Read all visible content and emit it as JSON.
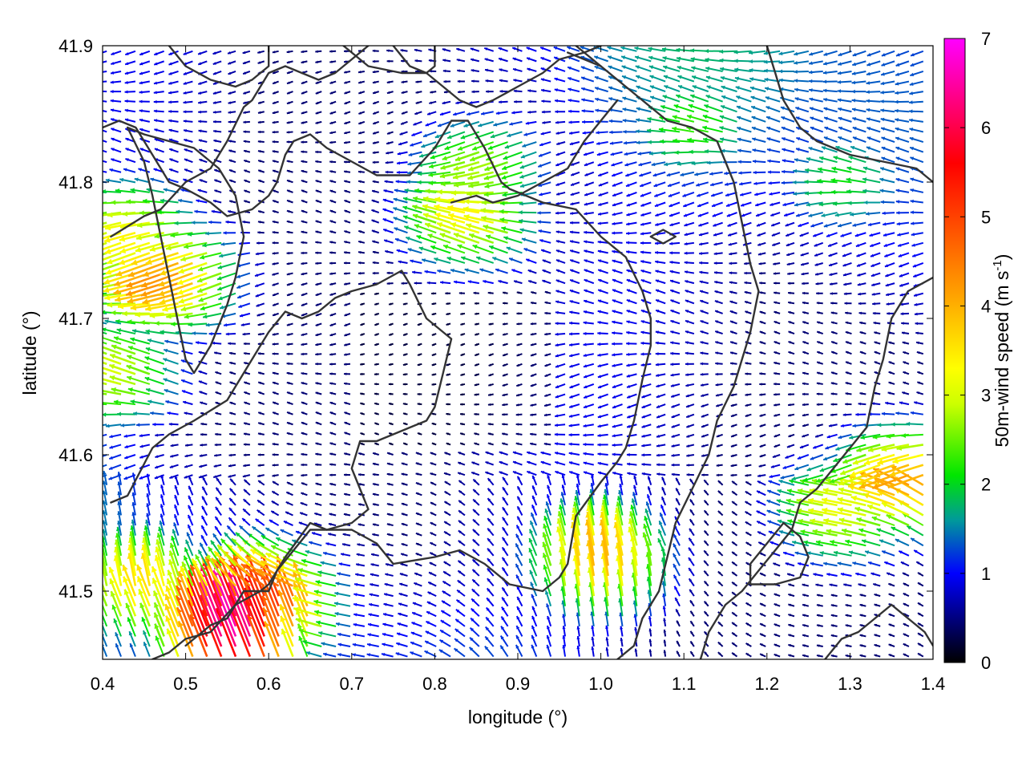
{
  "chart_data": {
    "type": "vector-field",
    "xlabel": "longitude (°)",
    "ylabel": "latitude (°)",
    "xlim": [
      0.4,
      1.4
    ],
    "ylim": [
      41.45,
      41.9
    ],
    "x_ticks": [
      "0.4",
      "0.5",
      "0.6",
      "0.7",
      "0.8",
      "0.9",
      "1.0",
      "1.1",
      "1.2",
      "1.3",
      "1.4"
    ],
    "y_ticks": [
      "41.5",
      "41.6",
      "41.7",
      "41.8",
      "41.9"
    ],
    "colorbar": {
      "label_text": "50m-wind speed (m s",
      "label_sup": "-1",
      "label_close": ")",
      "range": [
        0,
        7
      ],
      "ticks": [
        "0",
        "1",
        "2",
        "3",
        "4",
        "5",
        "6",
        "7"
      ],
      "colormap": [
        [
          0,
          "#000000"
        ],
        [
          1,
          "#0000ff"
        ],
        [
          1.6,
          "#009a9a"
        ],
        [
          2.1,
          "#00e600"
        ],
        [
          2.9,
          "#ccff00"
        ],
        [
          3.3,
          "#ffff00"
        ],
        [
          4.1,
          "#ffa500"
        ],
        [
          5.6,
          "#ff0000"
        ],
        [
          7,
          "#ff00ff"
        ]
      ]
    },
    "grid": false,
    "field_hotspots": [
      {
        "lon": 0.48,
        "lat": 41.73,
        "speed": 4.3
      },
      {
        "lon": 0.44,
        "lat": 41.76,
        "speed": 3.4
      },
      {
        "lon": 0.42,
        "lat": 41.66,
        "speed": 3.0
      },
      {
        "lon": 0.85,
        "lat": 41.775,
        "speed": 3.4
      },
      {
        "lon": 0.86,
        "lat": 41.81,
        "speed": 2.8
      },
      {
        "lon": 0.56,
        "lat": 41.47,
        "speed": 6.6
      },
      {
        "lon": 0.6,
        "lat": 41.49,
        "speed": 5.2
      },
      {
        "lon": 0.45,
        "lat": 41.5,
        "speed": 3.6
      },
      {
        "lon": 1.0,
        "lat": 41.52,
        "speed": 4.0
      },
      {
        "lon": 1.37,
        "lat": 41.58,
        "speed": 4.2
      },
      {
        "lon": 1.3,
        "lat": 41.56,
        "speed": 3.2
      },
      {
        "lon": 1.12,
        "lat": 41.84,
        "speed": 2.3
      },
      {
        "lon": 1.3,
        "lat": 41.8,
        "speed": 2.1
      }
    ],
    "contours": [
      [
        [
          0.41,
          41.565
        ],
        [
          0.43,
          41.57
        ],
        [
          0.46,
          41.605
        ],
        [
          0.48,
          41.615
        ],
        [
          0.51,
          41.625
        ],
        [
          0.55,
          41.64
        ],
        [
          0.57,
          41.66
        ],
        [
          0.59,
          41.68
        ],
        [
          0.6,
          41.69
        ],
        [
          0.62,
          41.705
        ],
        [
          0.64,
          41.7
        ],
        [
          0.66,
          41.705
        ],
        [
          0.68,
          41.715
        ],
        [
          0.7,
          41.72
        ],
        [
          0.73,
          41.725
        ],
        [
          0.76,
          41.735
        ],
        [
          0.77,
          41.725
        ],
        [
          0.79,
          41.7
        ],
        [
          0.8,
          41.695
        ],
        [
          0.82,
          41.685
        ],
        [
          0.81,
          41.66
        ],
        [
          0.8,
          41.635
        ],
        [
          0.79,
          41.625
        ],
        [
          0.75,
          41.615
        ],
        [
          0.73,
          41.61
        ],
        [
          0.71,
          41.61
        ],
        [
          0.7,
          41.59
        ],
        [
          0.72,
          41.56
        ],
        [
          0.7,
          41.55
        ],
        [
          0.67,
          41.545
        ],
        [
          0.65,
          41.55
        ],
        [
          0.62,
          41.525
        ],
        [
          0.6,
          41.505
        ],
        [
          0.59,
          41.5
        ],
        [
          0.56,
          41.49
        ],
        [
          0.53,
          41.47
        ],
        [
          0.5,
          41.465
        ],
        [
          0.48,
          41.455
        ],
        [
          0.46,
          41.45
        ]
      ],
      [
        [
          0.5,
          41.46
        ],
        [
          0.53,
          41.475
        ],
        [
          0.55,
          41.48
        ],
        [
          0.57,
          41.5
        ],
        [
          0.6,
          41.5
        ],
        [
          0.61,
          41.515
        ],
        [
          0.65,
          41.545
        ],
        [
          0.7,
          41.545
        ],
        [
          0.73,
          41.535
        ],
        [
          0.75,
          41.52
        ],
        [
          0.8,
          41.525
        ],
        [
          0.83,
          41.53
        ],
        [
          0.86,
          41.52
        ],
        [
          0.89,
          41.505
        ],
        [
          0.93,
          41.5
        ],
        [
          0.95,
          41.51
        ],
        [
          0.96,
          41.52
        ],
        [
          0.97,
          41.555
        ],
        [
          1.0,
          41.58
        ],
        [
          1.02,
          41.595
        ],
        [
          1.03,
          41.605
        ],
        [
          1.04,
          41.625
        ],
        [
          1.05,
          41.655
        ],
        [
          1.06,
          41.68
        ],
        [
          1.06,
          41.7
        ],
        [
          1.05,
          41.72
        ],
        [
          1.03,
          41.745
        ],
        [
          1.0,
          41.76
        ],
        [
          0.97,
          41.78
        ],
        [
          0.93,
          41.785
        ],
        [
          0.91,
          41.79
        ],
        [
          0.89,
          41.795
        ],
        [
          0.88,
          41.8
        ],
        [
          0.86,
          41.825
        ],
        [
          0.84,
          41.845
        ],
        [
          0.82,
          41.845
        ],
        [
          0.8,
          41.825
        ],
        [
          0.77,
          41.805
        ],
        [
          0.73,
          41.805
        ],
        [
          0.7,
          41.815
        ],
        [
          0.67,
          41.825
        ],
        [
          0.65,
          41.835
        ],
        [
          0.63,
          41.83
        ],
        [
          0.62,
          41.82
        ],
        [
          0.61,
          41.8
        ],
        [
          0.6,
          41.79
        ],
        [
          0.58,
          41.78
        ],
        [
          0.55,
          41.775
        ],
        [
          0.53,
          41.785
        ],
        [
          0.5,
          41.795
        ],
        [
          0.48,
          41.8
        ],
        [
          0.46,
          41.82
        ],
        [
          0.44,
          41.84
        ],
        [
          0.42,
          41.845
        ],
        [
          0.4,
          41.84
        ]
      ],
      [
        [
          0.41,
          41.76
        ],
        [
          0.45,
          41.775
        ],
        [
          0.47,
          41.78
        ],
        [
          0.5,
          41.8
        ],
        [
          0.53,
          41.81
        ],
        [
          0.55,
          41.83
        ],
        [
          0.57,
          41.855
        ],
        [
          0.58,
          41.86
        ],
        [
          0.6,
          41.88
        ],
        [
          0.62,
          41.885
        ],
        [
          0.64,
          41.88
        ],
        [
          0.66,
          41.875
        ],
        [
          0.68,
          41.88
        ],
        [
          0.7,
          41.89
        ],
        [
          0.72,
          41.9
        ]
      ],
      [
        [
          0.69,
          41.9
        ],
        [
          0.72,
          41.885
        ],
        [
          0.76,
          41.88
        ],
        [
          0.79,
          41.88
        ],
        [
          0.81,
          41.87
        ],
        [
          0.83,
          41.86
        ],
        [
          0.85,
          41.855
        ],
        [
          0.87,
          41.86
        ],
        [
          0.9,
          41.87
        ],
        [
          0.93,
          41.88
        ],
        [
          0.95,
          41.89
        ],
        [
          0.98,
          41.895
        ],
        [
          1.0,
          41.9
        ]
      ],
      [
        [
          0.97,
          41.9
        ],
        [
          1.0,
          41.885
        ],
        [
          1.03,
          41.87
        ],
        [
          1.05,
          41.86
        ],
        [
          1.08,
          41.845
        ],
        [
          1.11,
          41.84
        ],
        [
          1.14,
          41.83
        ],
        [
          1.16,
          41.8
        ],
        [
          1.17,
          41.77
        ],
        [
          1.18,
          41.74
        ],
        [
          1.19,
          41.72
        ],
        [
          1.18,
          41.69
        ],
        [
          1.17,
          41.67
        ],
        [
          1.16,
          41.65
        ],
        [
          1.14,
          41.625
        ],
        [
          1.13,
          41.6
        ],
        [
          1.11,
          41.575
        ],
        [
          1.09,
          41.55
        ],
        [
          1.08,
          41.525
        ],
        [
          1.07,
          41.5
        ],
        [
          1.05,
          41.48
        ],
        [
          1.04,
          41.46
        ],
        [
          1.02,
          41.45
        ]
      ],
      [
        [
          1.2,
          41.9
        ],
        [
          1.21,
          41.88
        ],
        [
          1.22,
          41.86
        ],
        [
          1.24,
          41.84
        ],
        [
          1.26,
          41.83
        ],
        [
          1.3,
          41.82
        ],
        [
          1.34,
          41.815
        ],
        [
          1.38,
          41.81
        ],
        [
          1.4,
          41.8
        ]
      ],
      [
        [
          1.4,
          41.73
        ],
        [
          1.37,
          41.72
        ],
        [
          1.35,
          41.7
        ],
        [
          1.34,
          41.67
        ],
        [
          1.33,
          41.65
        ],
        [
          1.32,
          41.62
        ],
        [
          1.3,
          41.605
        ],
        [
          1.28,
          41.59
        ],
        [
          1.26,
          41.575
        ],
        [
          1.24,
          41.565
        ],
        [
          1.23,
          41.545
        ],
        [
          1.21,
          41.53
        ],
        [
          1.19,
          41.515
        ],
        [
          1.17,
          41.5
        ],
        [
          1.15,
          41.49
        ],
        [
          1.13,
          41.47
        ],
        [
          1.12,
          41.45
        ]
      ],
      [
        [
          1.27,
          41.45
        ],
        [
          1.29,
          41.465
        ],
        [
          1.31,
          41.47
        ],
        [
          1.33,
          41.48
        ],
        [
          1.35,
          41.49
        ],
        [
          1.37,
          41.48
        ],
        [
          1.39,
          41.47
        ],
        [
          1.4,
          41.46
        ]
      ],
      [
        [
          1.18,
          41.505
        ],
        [
          1.21,
          41.505
        ],
        [
          1.24,
          41.51
        ],
        [
          1.25,
          41.525
        ],
        [
          1.24,
          41.54
        ],
        [
          1.22,
          41.55
        ],
        [
          1.2,
          41.535
        ],
        [
          1.18,
          41.52
        ],
        [
          1.18,
          41.505
        ]
      ],
      [
        [
          1.06,
          41.76
        ],
        [
          1.075,
          41.765
        ],
        [
          1.09,
          41.76
        ],
        [
          1.075,
          41.755
        ],
        [
          1.06,
          41.76
        ]
      ],
      [
        [
          0.82,
          41.785
        ],
        [
          0.85,
          41.79
        ],
        [
          0.87,
          41.785
        ],
        [
          0.9,
          41.79
        ],
        [
          0.93,
          41.8
        ],
        [
          0.96,
          41.81
        ],
        [
          0.98,
          41.83
        ],
        [
          1.0,
          41.845
        ],
        [
          1.02,
          41.86
        ]
      ],
      [
        [
          0.43,
          41.84
        ],
        [
          0.45,
          41.815
        ],
        [
          0.46,
          41.79
        ],
        [
          0.47,
          41.76
        ],
        [
          0.48,
          41.73
        ],
        [
          0.49,
          41.7
        ],
        [
          0.5,
          41.67
        ],
        [
          0.51,
          41.66
        ],
        [
          0.53,
          41.68
        ],
        [
          0.55,
          41.71
        ],
        [
          0.56,
          41.73
        ],
        [
          0.57,
          41.76
        ],
        [
          0.56,
          41.79
        ],
        [
          0.54,
          41.81
        ],
        [
          0.51,
          41.825
        ],
        [
          0.48,
          41.83
        ],
        [
          0.45,
          41.835
        ],
        [
          0.43,
          41.84
        ]
      ],
      [
        [
          0.75,
          41.9
        ],
        [
          0.77,
          41.885
        ],
        [
          0.79,
          41.88
        ],
        [
          0.8,
          41.885
        ],
        [
          0.8,
          41.9
        ]
      ],
      [
        [
          0.96,
          41.895
        ],
        [
          0.98,
          41.89
        ],
        [
          1.0,
          41.885
        ]
      ],
      [
        [
          0.48,
          41.9
        ],
        [
          0.5,
          41.885
        ],
        [
          0.53,
          41.875
        ],
        [
          0.56,
          41.87
        ],
        [
          0.58,
          41.875
        ],
        [
          0.6,
          41.885
        ],
        [
          0.6,
          41.9
        ]
      ]
    ]
  }
}
